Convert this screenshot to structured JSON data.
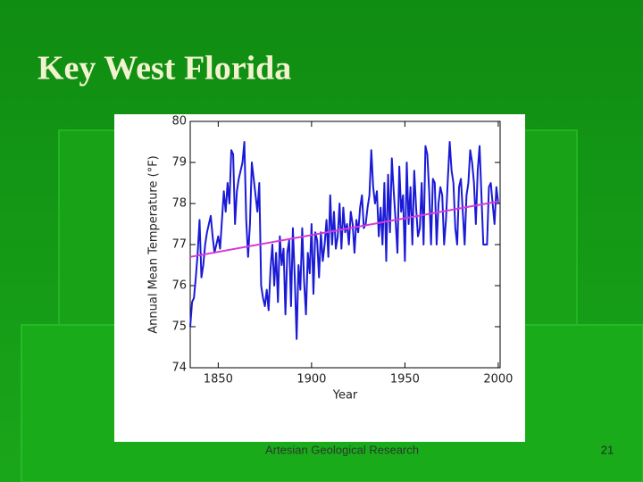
{
  "slide": {
    "title": "Key West Florida",
    "footer": "Artesian Geological Research",
    "page_number": "21"
  },
  "chart_data": {
    "type": "line",
    "xlabel": "Year",
    "ylabel": "Annual Mean Temperature (°F)",
    "xlim": [
      1835,
      2001
    ],
    "xticks": [
      1850,
      1900,
      1950,
      2000
    ],
    "ylim": [
      74,
      80
    ],
    "yticks": [
      74,
      75,
      76,
      77,
      78,
      79,
      80
    ],
    "series": [
      {
        "color": "#1a1ad6",
        "x": [
          1835,
          1836,
          1837,
          1838,
          1839,
          1840,
          1841,
          1842,
          1843,
          1844,
          1845,
          1846,
          1847,
          1848,
          1849,
          1850,
          1851,
          1852,
          1853,
          1854,
          1855,
          1856,
          1857,
          1858,
          1859,
          1860,
          1861,
          1862,
          1863,
          1864,
          1865,
          1866,
          1867,
          1868,
          1869,
          1870,
          1871,
          1872,
          1873,
          1874,
          1875,
          1876,
          1877,
          1878,
          1879,
          1880,
          1881,
          1882,
          1883,
          1884,
          1885,
          1886,
          1887,
          1888,
          1889,
          1890,
          1891,
          1892,
          1893,
          1894,
          1895,
          1896,
          1897,
          1898,
          1899,
          1900,
          1901,
          1902,
          1903,
          1904,
          1905,
          1906,
          1907,
          1908,
          1909,
          1910,
          1911,
          1912,
          1913,
          1914,
          1915,
          1916,
          1917,
          1918,
          1919,
          1920,
          1921,
          1922,
          1923,
          1924,
          1925,
          1926,
          1927,
          1928,
          1929,
          1930,
          1931,
          1932,
          1933,
          1934,
          1935,
          1936,
          1937,
          1938,
          1939,
          1940,
          1941,
          1942,
          1943,
          1944,
          1945,
          1946,
          1947,
          1948,
          1949,
          1950,
          1951,
          1952,
          1953,
          1954,
          1955,
          1956,
          1957,
          1958,
          1959,
          1960,
          1961,
          1962,
          1963,
          1964,
          1965,
          1966,
          1967,
          1968,
          1969,
          1970,
          1971,
          1972,
          1973,
          1974,
          1975,
          1976,
          1977,
          1978,
          1979,
          1980,
          1981,
          1982,
          1983,
          1984,
          1985,
          1986,
          1987,
          1988,
          1989,
          1990,
          1991,
          1992,
          1993,
          1994,
          1995,
          1996,
          1997,
          1998,
          1999,
          2000
        ],
        "values": [
          75.0,
          75.6,
          75.7,
          76.2,
          76.8,
          77.6,
          76.2,
          76.5,
          77.0,
          77.3,
          77.5,
          77.7,
          77.2,
          76.8,
          77.0,
          77.2,
          76.9,
          77.6,
          78.3,
          77.8,
          78.5,
          78.0,
          79.3,
          79.2,
          77.5,
          78.3,
          78.6,
          78.8,
          79.0,
          79.5,
          77.6,
          76.7,
          77.5,
          79.0,
          78.6,
          78.2,
          77.8,
          78.5,
          76.0,
          75.7,
          75.5,
          75.9,
          75.4,
          76.4,
          77.0,
          76.0,
          76.8,
          75.6,
          77.2,
          76.5,
          76.9,
          75.3,
          76.8,
          77.1,
          75.5,
          77.4,
          76.2,
          74.7,
          76.5,
          75.9,
          77.4,
          76.1,
          75.3,
          76.8,
          76.3,
          77.5,
          75.8,
          77.3,
          77.1,
          76.2,
          77.3,
          76.6,
          77.0,
          77.6,
          76.7,
          78.2,
          77.0,
          77.8,
          76.9,
          77.2,
          78.0,
          76.9,
          77.9,
          77.3,
          77.5,
          77.0,
          77.8,
          77.5,
          76.8,
          77.6,
          77.3,
          77.9,
          78.2,
          77.4,
          77.5,
          77.9,
          78.2,
          79.3,
          78.4,
          78.0,
          78.3,
          77.2,
          77.9,
          77.0,
          78.5,
          76.6,
          78.7,
          77.3,
          79.1,
          78.3,
          77.6,
          76.8,
          78.9,
          77.8,
          78.2,
          76.6,
          79.0,
          77.5,
          78.4,
          77.0,
          78.8,
          77.9,
          77.2,
          77.4,
          78.5,
          77.0,
          79.4,
          79.2,
          78.3,
          77.0,
          78.6,
          78.5,
          77.0,
          78.0,
          78.4,
          78.2,
          77.0,
          77.6,
          78.6,
          79.5,
          78.8,
          78.5,
          77.4,
          77.0,
          78.4,
          78.6,
          77.8,
          77.0,
          78.2,
          78.5,
          79.3,
          79.0,
          78.5,
          77.5,
          78.8,
          79.4,
          78.2,
          77.0,
          77.0,
          77.0,
          78.4,
          78.5,
          78.0,
          77.5,
          78.4,
          78.0
        ]
      },
      {
        "color": "#d63ad6",
        "x": [
          1835,
          2000
        ],
        "values": [
          76.7,
          78.05
        ]
      }
    ]
  }
}
